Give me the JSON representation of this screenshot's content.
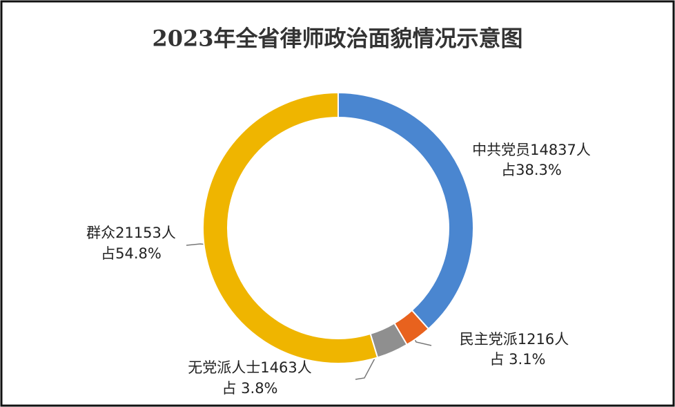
{
  "chart_data": {
    "type": "donut",
    "title": "2023年全省律师政治面貌情况示意图",
    "categories": [
      "中共党员",
      "民主党派",
      "无党派人士",
      "群众"
    ],
    "values": [
      14837,
      1216,
      1463,
      21153
    ],
    "value_labels": [
      "14837人",
      "1216人",
      "1463人",
      "21153人"
    ],
    "share_labels": [
      "占38.3%",
      "占 3.1%",
      "占 3.8%",
      "占54.8%"
    ],
    "colors": [
      "#4a86d0",
      "#e8621e",
      "#8f8f8f",
      "#efb500"
    ]
  }
}
